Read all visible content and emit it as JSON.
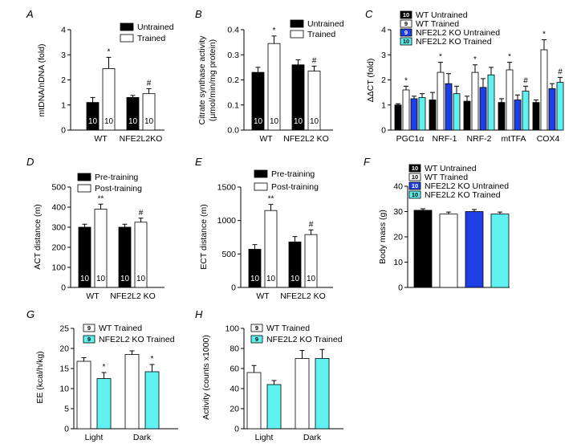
{
  "colors": {
    "black": "#000000",
    "white": "#ffffff",
    "blue": "#1f3fe6",
    "cyan": "#5ff2f0"
  },
  "chart_data": [
    {
      "panel": "A",
      "type": "bar",
      "ylabel": "mtDNA/nDNA (fold)",
      "ylim": [
        0,
        4
      ],
      "yticks": [
        0,
        1,
        2,
        3,
        4
      ],
      "categories": [
        "WT",
        "NFE2L2KO"
      ],
      "series": [
        {
          "name": "Untrained",
          "color": "black",
          "values": [
            1.1,
            1.3
          ],
          "errors": [
            0.2,
            0.08
          ],
          "n": [
            "10",
            "10"
          ],
          "marks": [
            "",
            ""
          ]
        },
        {
          "name": "Trained",
          "color": "white",
          "values": [
            2.45,
            1.45
          ],
          "errors": [
            0.45,
            0.2
          ],
          "n": [
            "10",
            "10"
          ],
          "marks": [
            "*",
            "#"
          ]
        }
      ]
    },
    {
      "panel": "B",
      "type": "bar",
      "ylabel": "Citrate synthase activity (μmol/min/mg protein)",
      "ylim": [
        0,
        0.4
      ],
      "yticks": [
        "0.0",
        "0.1",
        "0.2",
        "0.3",
        "0.4"
      ],
      "categories": [
        "WT",
        "NFE2L2 KO"
      ],
      "series": [
        {
          "name": "Untrained",
          "color": "black",
          "values": [
            0.23,
            0.26
          ],
          "errors": [
            0.02,
            0.02
          ],
          "n": [
            "10",
            "10"
          ],
          "marks": [
            "",
            ""
          ]
        },
        {
          "name": "Trained",
          "color": "white",
          "values": [
            0.345,
            0.235
          ],
          "errors": [
            0.03,
            0.02
          ],
          "n": [
            "10",
            "10"
          ],
          "marks": [
            "*",
            "#"
          ]
        }
      ]
    },
    {
      "panel": "C",
      "type": "bar",
      "ylabel": "ΔΔCT (fold)",
      "ylim": [
        0,
        4
      ],
      "yticks": [
        0,
        1,
        2,
        3,
        4
      ],
      "categories": [
        "PGC1α",
        "NRF-1",
        "NRF-2",
        "mtTFA",
        "COX4"
      ],
      "series": [
        {
          "name": "WT Untrained",
          "badge": "10",
          "color": "black",
          "values": [
            1.0,
            1.2,
            1.15,
            1.1,
            1.1
          ],
          "errors": [
            0.05,
            0.3,
            0.2,
            0.15,
            0.1
          ],
          "marks": [
            "",
            "",
            "",
            "",
            ""
          ]
        },
        {
          "name": "WT Trained",
          "badge": "9",
          "color": "white",
          "values": [
            1.6,
            2.3,
            2.3,
            2.4,
            3.2
          ],
          "errors": [
            0.15,
            0.4,
            0.3,
            0.3,
            0.4
          ],
          "marks": [
            "*",
            "*",
            "*",
            "*",
            "*"
          ]
        },
        {
          "name": "NFE2L2 KO Untrained",
          "badge": "9",
          "color": "blue",
          "values": [
            1.25,
            1.85,
            1.7,
            1.2,
            1.65
          ],
          "errors": [
            0.1,
            0.4,
            0.35,
            0.2,
            0.2
          ],
          "marks": [
            "",
            "",
            "",
            "",
            ""
          ]
        },
        {
          "name": "NFE2L2 KO Trained",
          "badge": "10",
          "color": "cyan",
          "values": [
            1.3,
            1.45,
            2.2,
            1.55,
            1.9
          ],
          "errors": [
            0.15,
            0.3,
            0.3,
            0.2,
            0.2
          ],
          "marks": [
            "",
            "",
            "",
            "#",
            "#"
          ]
        }
      ]
    },
    {
      "panel": "D",
      "type": "bar",
      "ylabel": "ACT distance (m)",
      "ylim": [
        0,
        500
      ],
      "yticks": [
        0,
        100,
        200,
        300,
        400,
        500
      ],
      "categories": [
        "WT",
        "NFE2L2 KO"
      ],
      "series": [
        {
          "name": "Pre-training",
          "color": "black",
          "values": [
            300,
            300
          ],
          "errors": [
            15,
            15
          ],
          "n": [
            "10",
            "10"
          ],
          "marks": [
            "",
            ""
          ]
        },
        {
          "name": "Post-training",
          "color": "white",
          "values": [
            390,
            325
          ],
          "errors": [
            25,
            20
          ],
          "n": [
            "10",
            "10"
          ],
          "marks": [
            "**",
            "#"
          ]
        }
      ]
    },
    {
      "panel": "E",
      "type": "bar",
      "ylabel": "ECT distance (m)",
      "ylim": [
        0,
        1500
      ],
      "yticks": [
        0,
        500,
        1000,
        1500
      ],
      "categories": [
        "WT",
        "NFE2L2 KO"
      ],
      "series": [
        {
          "name": "Pre-training",
          "color": "black",
          "values": [
            570,
            680
          ],
          "errors": [
            70,
            80
          ],
          "n": [
            "10",
            "10"
          ],
          "marks": [
            "",
            ""
          ]
        },
        {
          "name": "Post-training",
          "color": "white",
          "values": [
            1150,
            790
          ],
          "errors": [
            90,
            70
          ],
          "n": [
            "10",
            "10"
          ],
          "marks": [
            "**",
            "#"
          ]
        }
      ]
    },
    {
      "panel": "F",
      "type": "bar",
      "ylabel": "Body mass (g)",
      "ylim": [
        0,
        40
      ],
      "yticks": [
        0,
        10,
        20,
        30,
        40
      ],
      "categories": [
        ""
      ],
      "series": [
        {
          "name": "WT Untrained",
          "badge": "10",
          "color": "black",
          "values": [
            30.5
          ],
          "errors": [
            0.6
          ],
          "marks": [
            ""
          ]
        },
        {
          "name": "WT Trained",
          "badge": "10",
          "color": "white",
          "values": [
            29.0
          ],
          "errors": [
            0.8
          ],
          "marks": [
            ""
          ]
        },
        {
          "name": "NFE2L2 KO Untrained",
          "badge": "10",
          "color": "blue",
          "values": [
            30.0
          ],
          "errors": [
            0.8
          ],
          "marks": [
            ""
          ]
        },
        {
          "name": "NFE2L2 KO Trained",
          "badge": "10",
          "color": "cyan",
          "values": [
            29.0
          ],
          "errors": [
            0.8
          ],
          "marks": [
            ""
          ]
        }
      ]
    },
    {
      "panel": "G",
      "type": "bar",
      "ylabel": "EE (kcal/h/kg)",
      "ylim": [
        0,
        25
      ],
      "yticks": [
        0,
        5,
        10,
        15,
        20,
        25
      ],
      "categories": [
        "Light",
        "Dark"
      ],
      "series": [
        {
          "name": "WT Trained",
          "badge": "9",
          "color": "white",
          "values": [
            16.8,
            18.5
          ],
          "errors": [
            0.9,
            0.9
          ],
          "marks": [
            "",
            ""
          ]
        },
        {
          "name": "NFE2L2 KO Trained",
          "badge": "9",
          "color": "cyan",
          "values": [
            12.5,
            14.2
          ],
          "errors": [
            1.5,
            1.8
          ],
          "marks": [
            "*",
            "*"
          ]
        }
      ]
    },
    {
      "panel": "H",
      "type": "bar",
      "ylabel": "Activity (counts x1000)",
      "ylim": [
        0,
        100
      ],
      "yticks": [
        0,
        20,
        40,
        60,
        80,
        100
      ],
      "categories": [
        "Light",
        "Dark"
      ],
      "series": [
        {
          "name": "WT Trained",
          "badge": "9",
          "color": "white",
          "values": [
            56,
            70
          ],
          "errors": [
            7,
            8
          ],
          "marks": [
            "",
            ""
          ]
        },
        {
          "name": "NFE2L2 KO Trained",
          "badge": "9",
          "color": "cyan",
          "values": [
            44,
            70
          ],
          "errors": [
            4,
            9
          ],
          "marks": [
            "",
            ""
          ]
        }
      ]
    }
  ]
}
